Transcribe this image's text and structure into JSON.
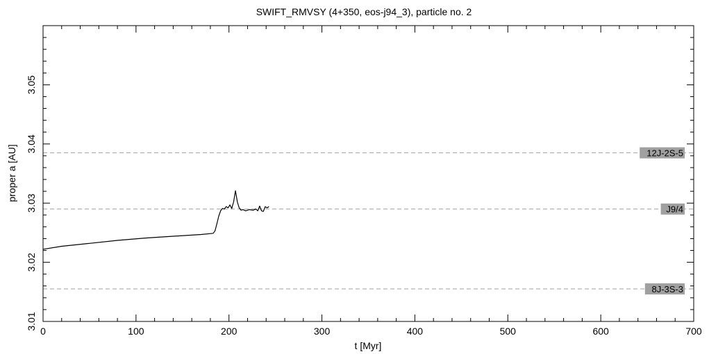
{
  "chart_data": {
    "type": "line",
    "title": "SWIFT_RMVSY (4+350, eos-j94_3), particle no. 2",
    "xlabel": "t [Myr]",
    "ylabel": "proper a [AU]",
    "xlim": [
      0,
      700
    ],
    "ylim": [
      3.01,
      3.06
    ],
    "x_ticks": [
      0,
      100,
      200,
      300,
      400,
      500,
      600,
      700
    ],
    "x_tick_labels": [
      "0",
      "100",
      "200",
      "300",
      "400",
      "500",
      "600",
      "700"
    ],
    "y_ticks": [
      3.01,
      3.02,
      3.03,
      3.04,
      3.05
    ],
    "y_tick_labels": [
      "3.01",
      "3.02",
      "3.03",
      "3.04",
      "3.05"
    ],
    "grid": false,
    "series": [
      {
        "color": "#000000",
        "x": [
          0,
          20,
          50,
          80,
          110,
          140,
          170,
          183,
          185,
          187,
          189,
          191,
          193,
          195,
          197,
          199,
          201,
          203,
          205,
          207,
          209,
          211,
          213,
          215,
          218,
          222,
          226,
          229,
          231,
          233,
          235,
          237,
          239,
          241,
          243
        ],
        "y": [
          3.0222,
          3.0227,
          3.0232,
          3.0237,
          3.0241,
          3.0244,
          3.0247,
          3.0249,
          3.0253,
          3.0265,
          3.0278,
          3.0287,
          3.0291,
          3.029,
          3.0294,
          3.0292,
          3.0297,
          3.0291,
          3.0302,
          3.0321,
          3.0302,
          3.0292,
          3.0288,
          3.0289,
          3.0287,
          3.0289,
          3.0288,
          3.029,
          3.0287,
          3.0295,
          3.0287,
          3.0286,
          3.0294,
          3.0292,
          3.0294
        ]
      }
    ],
    "resonances": [
      {
        "label": "12J-2S-5",
        "a": 3.0385
      },
      {
        "label": "J9/4",
        "a": 3.029
      },
      {
        "label": "8J-3S-3",
        "a": 3.0155
      }
    ],
    "resonance_line_color": "#a0a0a0",
    "resonance_label_bg": "#a0a0a0"
  }
}
